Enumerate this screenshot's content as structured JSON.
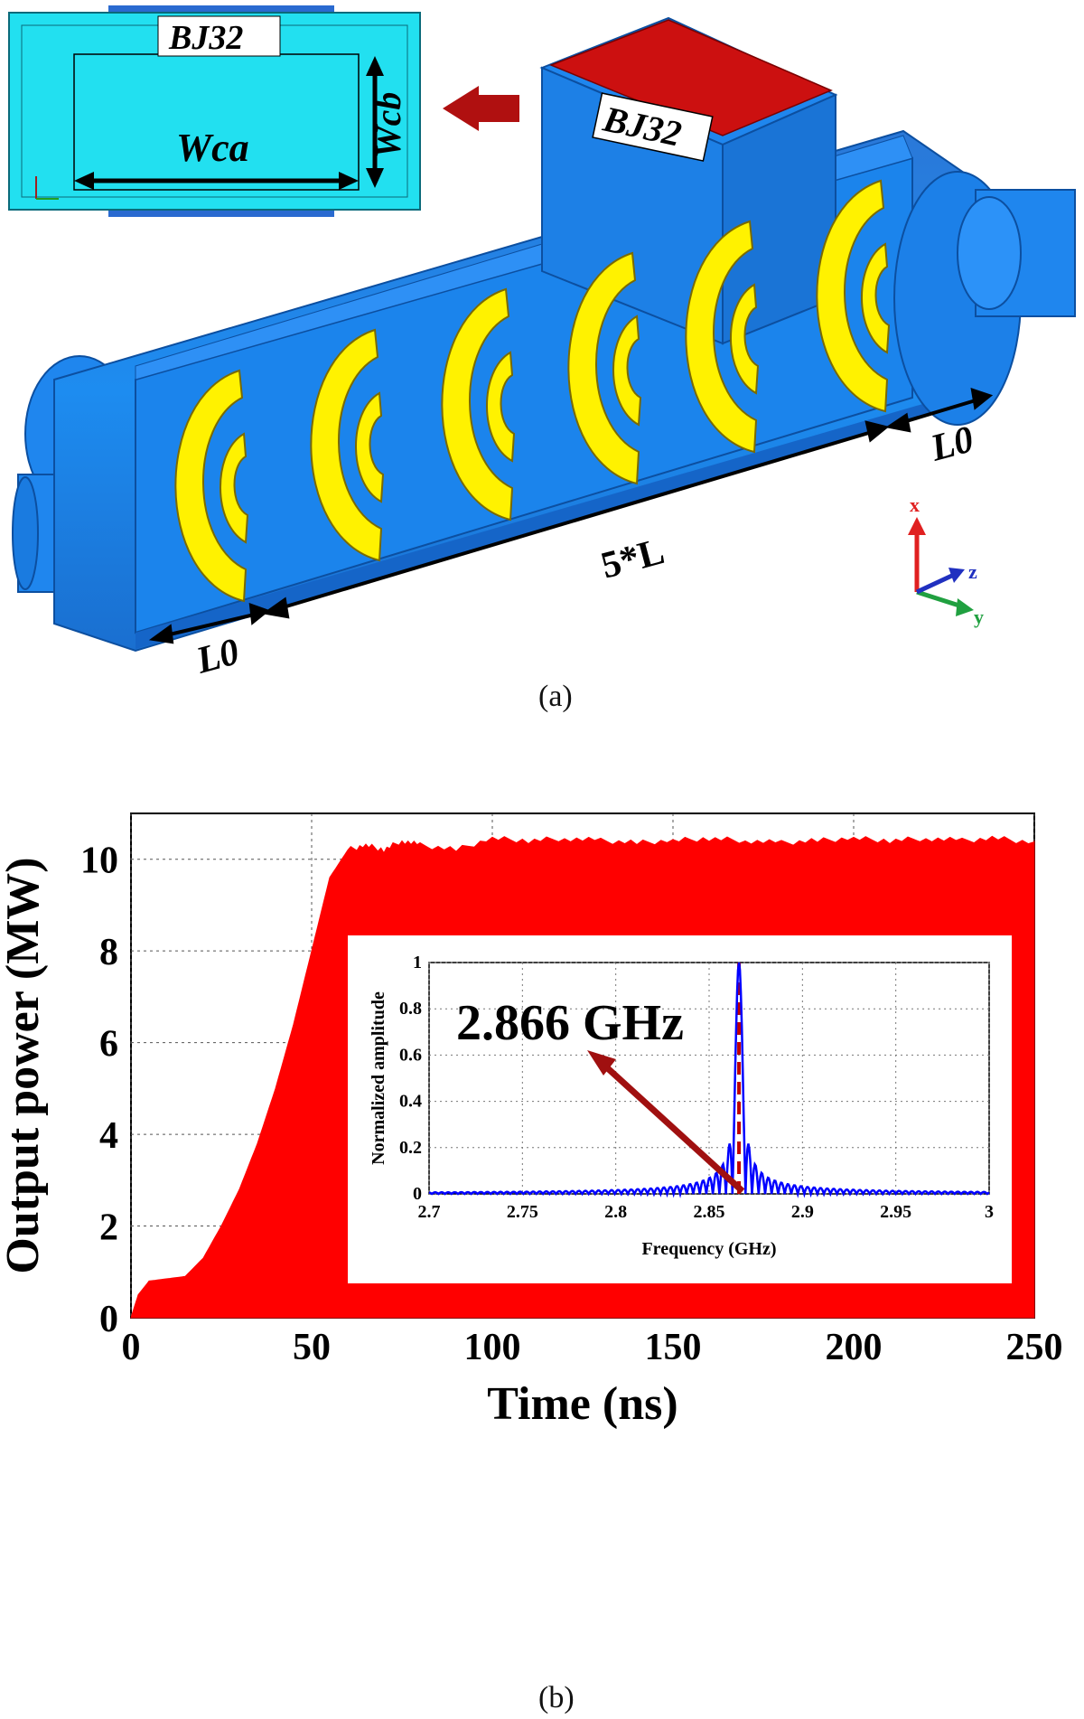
{
  "figure_a": {
    "caption": "(a)",
    "inset_label_top": "BJ32",
    "inset_label_wca": "Wca",
    "inset_label_wcb": "Wcb",
    "port_label": "BJ32",
    "dim_l0_left": "L0",
    "dim_l0_right": "L0",
    "dim_5l": "5*L",
    "axis_x": "x",
    "axis_y": "y",
    "axis_z": "z",
    "colors": {
      "body": "#1e90ff",
      "ring": "#ffff00",
      "port_top": "#cc1010",
      "inset_bg": "#22e0f0",
      "arrow": "#b01010"
    }
  },
  "figure_b": {
    "caption": "(b)",
    "colors": {
      "fill": "#ff0000",
      "inset_line": "#0000ff",
      "marker": "#c00000"
    }
  },
  "chart_data": [
    {
      "type": "area",
      "title": "",
      "xlabel": "Time (ns)",
      "ylabel": "Output power (MW)",
      "xlim": [
        0,
        250
      ],
      "ylim": [
        0,
        11
      ],
      "grid": true,
      "xticks": [
        0,
        50,
        100,
        150,
        200,
        250
      ],
      "yticks": [
        0,
        2,
        4,
        6,
        8,
        10
      ],
      "series": [
        {
          "name": "Output power",
          "x": [
            0,
            2,
            5,
            10,
            15,
            20,
            25,
            30,
            35,
            40,
            45,
            50,
            55,
            60,
            65,
            70,
            75,
            80,
            90,
            100,
            110,
            120,
            130,
            140,
            150,
            160,
            170,
            180,
            190,
            200,
            210,
            220,
            230,
            240,
            250
          ],
          "upper": [
            0,
            0.5,
            0.8,
            0.85,
            0.9,
            1.3,
            2.0,
            2.8,
            3.8,
            5.0,
            6.4,
            8.0,
            9.6,
            10.2,
            10.3,
            10.2,
            10.4,
            10.3,
            10.2,
            10.45,
            10.4,
            10.45,
            10.4,
            10.35,
            10.4,
            10.45,
            10.4,
            10.35,
            10.4,
            10.45,
            10.4,
            10.45,
            10.4,
            10.45,
            10.35
          ]
        }
      ]
    },
    {
      "type": "line",
      "title": "",
      "xlabel": "Frequency (GHz)",
      "ylabel": "Normalized amplitude",
      "xlim": [
        2.7,
        3.0
      ],
      "ylim": [
        0,
        1
      ],
      "grid": true,
      "xticks": [
        "2.7",
        "2.75",
        "2.8",
        "2.85",
        "2.9",
        "2.95",
        "3"
      ],
      "yticks": [
        "0",
        "0.2",
        "0.4",
        "0.6",
        "0.8",
        "1"
      ],
      "peak_frequency": 2.866,
      "annotation": "2.866 GHz"
    }
  ]
}
